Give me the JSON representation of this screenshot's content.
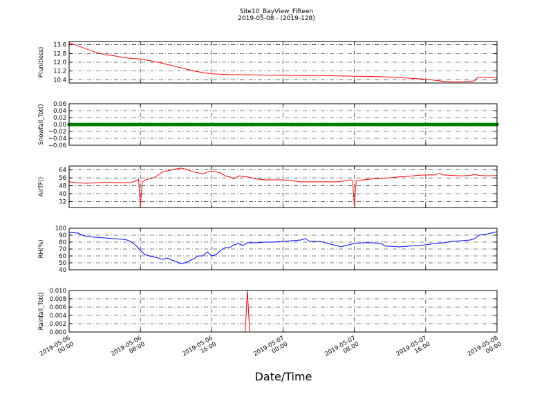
{
  "chart_data": {
    "title": "Site10_BayView_Fifteen",
    "subtitle": "2019-05-08 - (2019-128)",
    "xlabel": "Date/Time",
    "type": "line",
    "x_ticks": [
      "2019-05-06\n00:00",
      "2019-05-06\n08:00",
      "2019-05-06\n16:00",
      "2019-05-07\n00:00",
      "2019-05-07\n08:00",
      "2019-05-07\n16:00",
      "2019-05-08\n00:00"
    ],
    "x_range_hours": [
      0,
      48
    ],
    "panels": [
      {
        "ylabel": "P(unitless)",
        "ylim": [
          10.1,
          13.9
        ],
        "yticks": [
          "10.4",
          "11.2",
          "12.0",
          "12.8",
          "13.6"
        ],
        "ytick_values": [
          10.4,
          11.2,
          12.0,
          12.8,
          13.6
        ],
        "color": "#ff0000",
        "points": [
          [
            0,
            13.8
          ],
          [
            1,
            13.5
          ],
          [
            2,
            13.2
          ],
          [
            3,
            12.9
          ],
          [
            4,
            12.7
          ],
          [
            5,
            12.6
          ],
          [
            6,
            12.45
          ],
          [
            7,
            12.35
          ],
          [
            8,
            12.3
          ],
          [
            9,
            12.15
          ],
          [
            10,
            12.0
          ],
          [
            11,
            11.8
          ],
          [
            12,
            11.6
          ],
          [
            13,
            11.4
          ],
          [
            14,
            11.2
          ],
          [
            15,
            11.05
          ],
          [
            16,
            10.95
          ],
          [
            17,
            10.9
          ],
          [
            18,
            10.87
          ],
          [
            20,
            10.85
          ],
          [
            24,
            10.8
          ],
          [
            28,
            10.78
          ],
          [
            32,
            10.72
          ],
          [
            34,
            10.7
          ],
          [
            36,
            10.65
          ],
          [
            38,
            10.55
          ],
          [
            40,
            10.45
          ],
          [
            41,
            10.35
          ],
          [
            42,
            10.25
          ],
          [
            43,
            10.2
          ],
          [
            44,
            10.2
          ],
          [
            45,
            10.25
          ],
          [
            45.5,
            10.3
          ],
          [
            45.8,
            10.6
          ],
          [
            46.2,
            10.65
          ],
          [
            47,
            10.6
          ],
          [
            48,
            10.6
          ]
        ]
      },
      {
        "ylabel": "Snowfall_Tot()",
        "ylim": [
          -0.06,
          0.06
        ],
        "yticks": [
          "−0.06",
          "−0.04",
          "−0.02",
          "0.00",
          "0.02",
          "0.04",
          "0.06"
        ],
        "ytick_values": [
          -0.06,
          -0.04,
          -0.02,
          0.0,
          0.02,
          0.04,
          0.06
        ],
        "color": "#008000",
        "markers": true,
        "points": [
          [
            0,
            0
          ],
          [
            48,
            0
          ]
        ]
      },
      {
        "ylabel": "AirTF()",
        "ylim": [
          26,
          68
        ],
        "yticks": [
          "32",
          "40",
          "48",
          "56",
          "64"
        ],
        "ytick_values": [
          32,
          40,
          48,
          56,
          64
        ],
        "color": "#ff0000",
        "points": [
          [
            0,
            52
          ],
          [
            1,
            51
          ],
          [
            2,
            50.5
          ],
          [
            3,
            51
          ],
          [
            4,
            51.5
          ],
          [
            5,
            51.5
          ],
          [
            6,
            51
          ],
          [
            7,
            51.5
          ],
          [
            7.5,
            53
          ],
          [
            7.8,
            54.5
          ],
          [
            8,
            27
          ],
          [
            8.2,
            52
          ],
          [
            8.6,
            54
          ],
          [
            9,
            55
          ],
          [
            9.5,
            56
          ],
          [
            10,
            59
          ],
          [
            10.5,
            62
          ],
          [
            11,
            63
          ],
          [
            12,
            65
          ],
          [
            12.5,
            66
          ],
          [
            13,
            65
          ],
          [
            14,
            62
          ],
          [
            15,
            60
          ],
          [
            15.5,
            62
          ],
          [
            16,
            63
          ],
          [
            16.5,
            62
          ],
          [
            17,
            61
          ],
          [
            17.5,
            58
          ],
          [
            18,
            57
          ],
          [
            18.5,
            55
          ],
          [
            19,
            58
          ],
          [
            20,
            57
          ],
          [
            21,
            55
          ],
          [
            22,
            54
          ],
          [
            24,
            54
          ],
          [
            25,
            53
          ],
          [
            26,
            52
          ],
          [
            28,
            52
          ],
          [
            30,
            52
          ],
          [
            31,
            53
          ],
          [
            31.5,
            54
          ],
          [
            31.8,
            53
          ],
          [
            32,
            27
          ],
          [
            32.2,
            53
          ],
          [
            33,
            54
          ],
          [
            34,
            55
          ],
          [
            35,
            55.5
          ],
          [
            36,
            56
          ],
          [
            37,
            57
          ],
          [
            38,
            57.5
          ],
          [
            39,
            58.5
          ],
          [
            40,
            59
          ],
          [
            41,
            59
          ],
          [
            41.5,
            60.5
          ],
          [
            42,
            59
          ],
          [
            43,
            58.5
          ],
          [
            44,
            58
          ],
          [
            45,
            58.5
          ],
          [
            45.5,
            59.5
          ],
          [
            46,
            58.5
          ],
          [
            47,
            58
          ],
          [
            48,
            58.5
          ]
        ]
      },
      {
        "ylabel": "RH(%)",
        "ylim": [
          40,
          100
        ],
        "yticks": [
          "40",
          "50",
          "60",
          "70",
          "80",
          "90",
          "100"
        ],
        "ytick_values": [
          40,
          50,
          60,
          70,
          80,
          90,
          100
        ],
        "color": "#0000ff",
        "points": [
          [
            0,
            94
          ],
          [
            1,
            93
          ],
          [
            1.5,
            90
          ],
          [
            2,
            88
          ],
          [
            3,
            87
          ],
          [
            4,
            86
          ],
          [
            5,
            85
          ],
          [
            6,
            84
          ],
          [
            6.5,
            83
          ],
          [
            7,
            80
          ],
          [
            7.5,
            75
          ],
          [
            8,
            68
          ],
          [
            8.5,
            62
          ],
          [
            9,
            60
          ],
          [
            10,
            57
          ],
          [
            10.5,
            55
          ],
          [
            11,
            57
          ],
          [
            11.5,
            54
          ],
          [
            12,
            52
          ],
          [
            12.5,
            49
          ],
          [
            13,
            50
          ],
          [
            13.5,
            53
          ],
          [
            14,
            56
          ],
          [
            14.5,
            60
          ],
          [
            15,
            60
          ],
          [
            15.5,
            66
          ],
          [
            16,
            60
          ],
          [
            16.5,
            62
          ],
          [
            17,
            68
          ],
          [
            17.5,
            72
          ],
          [
            18,
            72
          ],
          [
            18.5,
            76
          ],
          [
            19,
            78
          ],
          [
            19.5,
            75
          ],
          [
            20,
            79
          ],
          [
            21,
            79
          ],
          [
            22,
            80
          ],
          [
            23,
            80
          ],
          [
            24,
            81
          ],
          [
            25,
            82
          ],
          [
            26,
            83
          ],
          [
            26.5,
            85
          ],
          [
            27,
            81
          ],
          [
            28,
            81
          ],
          [
            28.5,
            80
          ],
          [
            29,
            78
          ],
          [
            30,
            75
          ],
          [
            30.5,
            73
          ],
          [
            31,
            75
          ],
          [
            32,
            78
          ],
          [
            33,
            79
          ],
          [
            34,
            79
          ],
          [
            35,
            78
          ],
          [
            35.5,
            74
          ],
          [
            36,
            74
          ],
          [
            37,
            73
          ],
          [
            38,
            74
          ],
          [
            39,
            75
          ],
          [
            40,
            76
          ],
          [
            41,
            78
          ],
          [
            42,
            79
          ],
          [
            43,
            81
          ],
          [
            44,
            82
          ],
          [
            45,
            83
          ],
          [
            45.5,
            85
          ],
          [
            46,
            90
          ],
          [
            47,
            92
          ],
          [
            48,
            95
          ]
        ]
      },
      {
        "ylabel": "Rainfall_Tot()",
        "ylim": [
          0,
          0.01
        ],
        "yticks": [
          "0.000",
          "0.002",
          "0.004",
          "0.006",
          "0.008",
          "0.010"
        ],
        "ytick_values": [
          0,
          0.002,
          0.004,
          0.006,
          0.008,
          0.01
        ],
        "color": "#ff0000",
        "points": [
          [
            0,
            0
          ],
          [
            19.75,
            0
          ],
          [
            20,
            0.01
          ],
          [
            20.25,
            0
          ],
          [
            48,
            0
          ]
        ]
      }
    ]
  }
}
